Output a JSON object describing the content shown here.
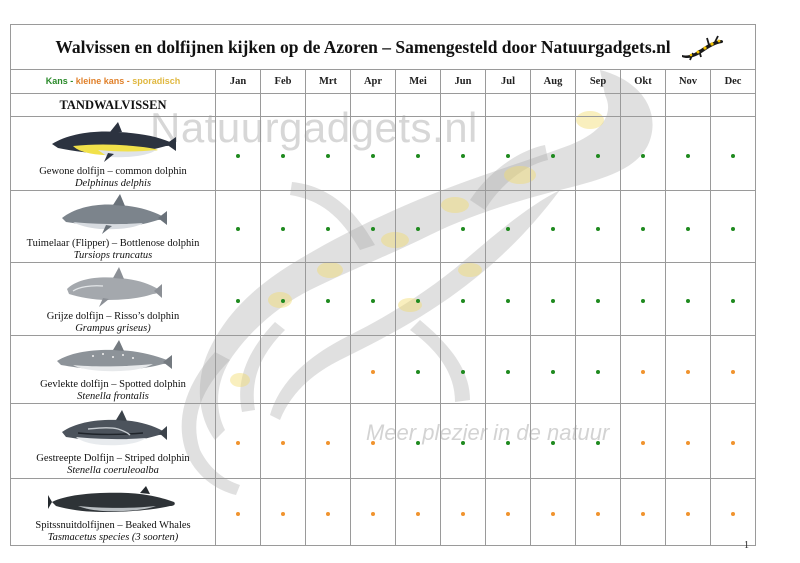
{
  "title": "Walvissen en dolfijnen kijken op de Azoren – Samengesteld door Natuurgadgets.nl",
  "legend": {
    "kans": "Kans -",
    "kleine_kans": "kleine kans -",
    "sporadisch": "sporadisch"
  },
  "months": [
    "Jan",
    "Feb",
    "Mrt",
    "Apr",
    "Mei",
    "Jun",
    "Jul",
    "Aug",
    "Sep",
    "Okt",
    "Nov",
    "Dec"
  ],
  "section": "TANDWALVISSEN",
  "colors": {
    "kans": "#1f8a1f",
    "kleine_kans": "#f0932e",
    "sporadisch": "#f2c744"
  },
  "species": [
    {
      "name": "Gewone dolfijn – common dolphin",
      "scientific": "Delphinus delphis",
      "icon": "common-dolphin-icon",
      "availability": [
        "kans",
        "kans",
        "kans",
        "kans",
        "kans",
        "kans",
        "kans",
        "kans",
        "kans",
        "kans",
        "kans",
        "kans"
      ]
    },
    {
      "name": "Tuimelaar (Flipper) – Bottlenose dolphin",
      "scientific": "Tursiops truncatus",
      "icon": "bottlenose-dolphin-icon",
      "availability": [
        "kans",
        "kans",
        "kans",
        "kans",
        "kans",
        "kans",
        "kans",
        "kans",
        "kans",
        "kans",
        "kans",
        "kans"
      ]
    },
    {
      "name": "Grijze dolfijn – Risso’s dolphin",
      "scientific": "Grampus griseus)",
      "icon": "rissos-dolphin-icon",
      "availability": [
        "kans",
        "kans",
        "kans",
        "kans",
        "kans",
        "kans",
        "kans",
        "kans",
        "kans",
        "kans",
        "kans",
        "kans"
      ]
    },
    {
      "name": "Gevlekte dolfijn – Spotted dolphin",
      "scientific": "Stenella frontalis",
      "icon": "spotted-dolphin-icon",
      "availability": [
        "",
        "",
        "",
        "kleine_kans",
        "kans",
        "kans",
        "kans",
        "kans",
        "kans",
        "kleine_kans",
        "kleine_kans",
        "kleine_kans"
      ]
    },
    {
      "name": "Gestreepte Dolfijn – Striped dolphin",
      "scientific": "Stenella coeruleoalba",
      "icon": "striped-dolphin-icon",
      "availability": [
        "kleine_kans",
        "kleine_kans",
        "kleine_kans",
        "kleine_kans",
        "kans",
        "kans",
        "kans",
        "kans",
        "kans",
        "kleine_kans",
        "kleine_kans",
        "kleine_kans"
      ]
    },
    {
      "name": "Spitssnuitdolfijnen – Beaked Whales",
      "scientific": "Tasmacetus species (3 soorten)",
      "icon": "beaked-whale-icon",
      "availability": [
        "kleine_kans",
        "kleine_kans",
        "kleine_kans",
        "kleine_kans",
        "kleine_kans",
        "kleine_kans",
        "kleine_kans",
        "kleine_kans",
        "kleine_kans",
        "kleine_kans",
        "kleine_kans",
        "kleine_kans"
      ]
    }
  ],
  "watermark": {
    "brand": "Natuurgadgets.nl",
    "slogan": "Meer plezier in de natuur"
  },
  "page_number": "1"
}
